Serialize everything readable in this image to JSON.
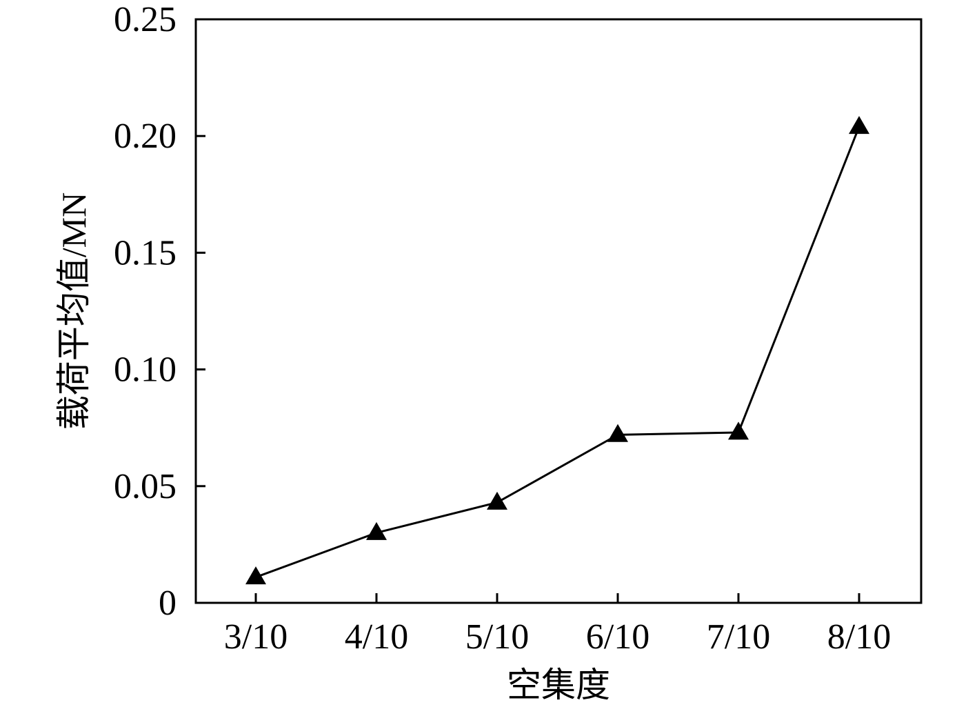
{
  "chart_data": {
    "type": "line",
    "title": "",
    "xlabel": "空集度",
    "ylabel": "载荷平均值/MN",
    "categories": [
      "3/10",
      "4/10",
      "5/10",
      "6/10",
      "7/10",
      "8/10"
    ],
    "series": [
      {
        "values": [
          0.011,
          0.03,
          0.043,
          0.072,
          0.073,
          0.204
        ],
        "marker": "triangle"
      }
    ],
    "ylim": [
      0,
      0.25
    ],
    "yticks": [
      "0",
      "0.05",
      "0.10",
      "0.15",
      "0.20",
      "0.25"
    ],
    "grid": false,
    "legend": "none",
    "colors": {
      "line": "#000000",
      "marker": "#000000",
      "frame": "#000000"
    }
  }
}
